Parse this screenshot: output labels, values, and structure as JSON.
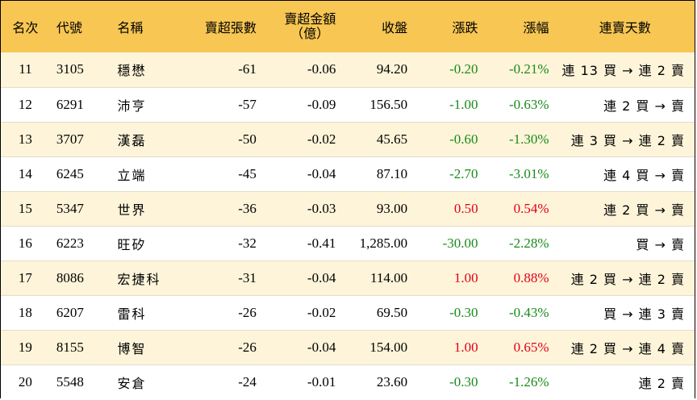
{
  "headers": {
    "rank": "名次",
    "code": "代號",
    "name": "名稱",
    "net_sell_lots": "賣超張數",
    "net_sell_amount_line1": "賣超金額",
    "net_sell_amount_line2": "（億）",
    "close": "收盤",
    "change": "漲跌",
    "change_pct": "漲幅",
    "streak": "連賣天數"
  },
  "rows": [
    {
      "rank": "11",
      "code": "3105",
      "name": "穩懋",
      "lots": "-61",
      "amount": "-0.06",
      "close": "94.20",
      "change": "-0.20",
      "pct": "-0.21%",
      "dir": "down",
      "streak": "連 13 買 → 連 2 賣"
    },
    {
      "rank": "12",
      "code": "6291",
      "name": "沛亨",
      "lots": "-57",
      "amount": "-0.09",
      "close": "156.50",
      "change": "-1.00",
      "pct": "-0.63%",
      "dir": "down",
      "streak": "連 2 買 → 賣"
    },
    {
      "rank": "13",
      "code": "3707",
      "name": "漢磊",
      "lots": "-50",
      "amount": "-0.02",
      "close": "45.65",
      "change": "-0.60",
      "pct": "-1.30%",
      "dir": "down",
      "streak": "連 3 買 → 連 2 賣"
    },
    {
      "rank": "14",
      "code": "6245",
      "name": "立端",
      "lots": "-45",
      "amount": "-0.04",
      "close": "87.10",
      "change": "-2.70",
      "pct": "-3.01%",
      "dir": "down",
      "streak": "連 4 買 → 賣"
    },
    {
      "rank": "15",
      "code": "5347",
      "name": "世界",
      "lots": "-36",
      "amount": "-0.03",
      "close": "93.00",
      "change": "0.50",
      "pct": "0.54%",
      "dir": "up",
      "streak": "連 2 買 → 賣"
    },
    {
      "rank": "16",
      "code": "6223",
      "name": "旺矽",
      "lots": "-32",
      "amount": "-0.41",
      "close": "1,285.00",
      "change": "-30.00",
      "pct": "-2.28%",
      "dir": "down",
      "streak": "買 → 賣"
    },
    {
      "rank": "17",
      "code": "8086",
      "name": "宏捷科",
      "lots": "-31",
      "amount": "-0.04",
      "close": "114.00",
      "change": "1.00",
      "pct": "0.88%",
      "dir": "up",
      "streak": "連 2 買 → 連 2 賣"
    },
    {
      "rank": "18",
      "code": "6207",
      "name": "雷科",
      "lots": "-26",
      "amount": "-0.02",
      "close": "69.50",
      "change": "-0.30",
      "pct": "-0.43%",
      "dir": "down",
      "streak": "買 → 連 3 賣"
    },
    {
      "rank": "19",
      "code": "8155",
      "name": "博智",
      "lots": "-26",
      "amount": "-0.04",
      "close": "154.00",
      "change": "1.00",
      "pct": "0.65%",
      "dir": "up",
      "streak": "連 2 買 → 連 4 賣"
    },
    {
      "rank": "20",
      "code": "5548",
      "name": "安倉",
      "lots": "-24",
      "amount": "-0.01",
      "close": "23.60",
      "change": "-0.30",
      "pct": "-1.26%",
      "dir": "down",
      "streak": "連 2 賣"
    }
  ],
  "colors": {
    "header_bg": "#f7c653",
    "stripe_bg": "#fdf4d9",
    "up": "#e3001b",
    "down": "#1a8a1a"
  }
}
